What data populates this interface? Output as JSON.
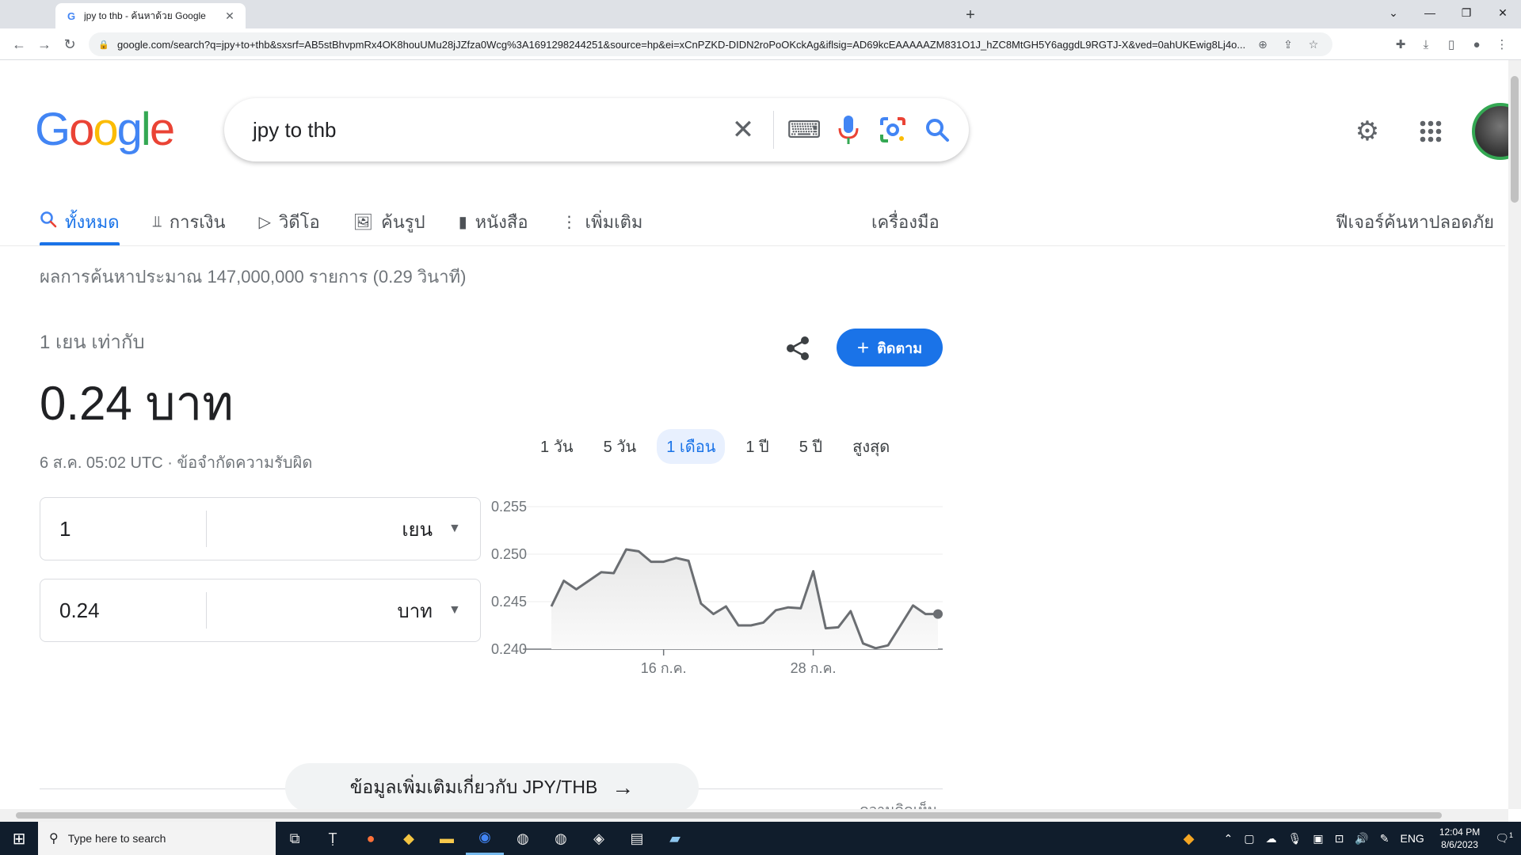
{
  "browser": {
    "tab_title": "jpy to thb - ค้นหาด้วย Google",
    "tab_favicon": "G",
    "url": "google.com/search?q=jpy+to+thb&sxsrf=AB5stBhvpmRx4OK8houUMu28jJZfza0Wcg%3A1691298244251&source=hp&ei=xCnPZKD-DIDN2roPoOKckAg&iflsig=AD69kcEAAAAAZM831O1J_hZC8MtGH5Y6aggdL9RGTJ-X&ved=0ahUKEwig8Lj4o..."
  },
  "search": {
    "query": "jpy to thb"
  },
  "nav_tabs": [
    {
      "label": "ทั้งหมด",
      "icon": "search-icon"
    },
    {
      "label": "การเงิน",
      "icon": "finance-icon"
    },
    {
      "label": "วิดีโอ",
      "icon": "video-icon"
    },
    {
      "label": "ค้นรูป",
      "icon": "image-icon"
    },
    {
      "label": "หนังสือ",
      "icon": "book-icon"
    },
    {
      "label": "เพิ่มเติม",
      "icon": "more-vert-icon"
    }
  ],
  "tools_label": "เครื่องมือ",
  "safe_search_label": "ฟีเจอร์ค้นหาปลอดภัย",
  "result_stats": "ผลการค้นหาประมาณ 147,000,000 รายการ (0.29 วินาที)",
  "converter": {
    "equals_text": "1 เยน เท่ากับ",
    "result_text": "0.24 บาท",
    "updated_text": "6 ส.ค. 05:02 UTC · ข้อจำกัดความรับผิด",
    "follow_label": "ติดตาม",
    "from_amount": "1",
    "from_currency": "เยน",
    "to_amount": "0.24",
    "to_currency": "บาท",
    "ranges": [
      "1 วัน",
      "5 วัน",
      "1 เดือน",
      "1 ปี",
      "5 ปี",
      "สูงสุด"
    ],
    "active_range": "1 เดือน",
    "more_info": "ข้อมูลเพิ่มเติมเกี่ยวกับ JPY/THB",
    "peek_text": "ความคิดเห็น"
  },
  "chart_data": {
    "type": "area",
    "y_ticks": [
      "0.255",
      "0.250",
      "0.245",
      "0.240"
    ],
    "ylim": [
      0.24,
      0.255
    ],
    "x_tick_labels": [
      "16 ก.ค.",
      "28 ก.ค."
    ],
    "x_tick_index": [
      9,
      21
    ],
    "values": [
      0.2445,
      0.2472,
      0.2463,
      0.2472,
      0.2481,
      0.248,
      0.2505,
      0.2503,
      0.2492,
      0.2492,
      0.2496,
      0.2493,
      0.2448,
      0.2437,
      0.2445,
      0.2425,
      0.2425,
      0.2428,
      0.2441,
      0.2444,
      0.2443,
      0.2482,
      0.2422,
      0.2423,
      0.244,
      0.2406,
      0.2401,
      0.2404,
      0.2425,
      0.2446,
      0.2437,
      0.2437
    ],
    "line_color": "#6b6e72"
  },
  "taskbar": {
    "search_placeholder": "Type here to search",
    "lang": "ENG",
    "time": "12:04 PM",
    "date": "8/6/2023",
    "notif_count": "1"
  }
}
